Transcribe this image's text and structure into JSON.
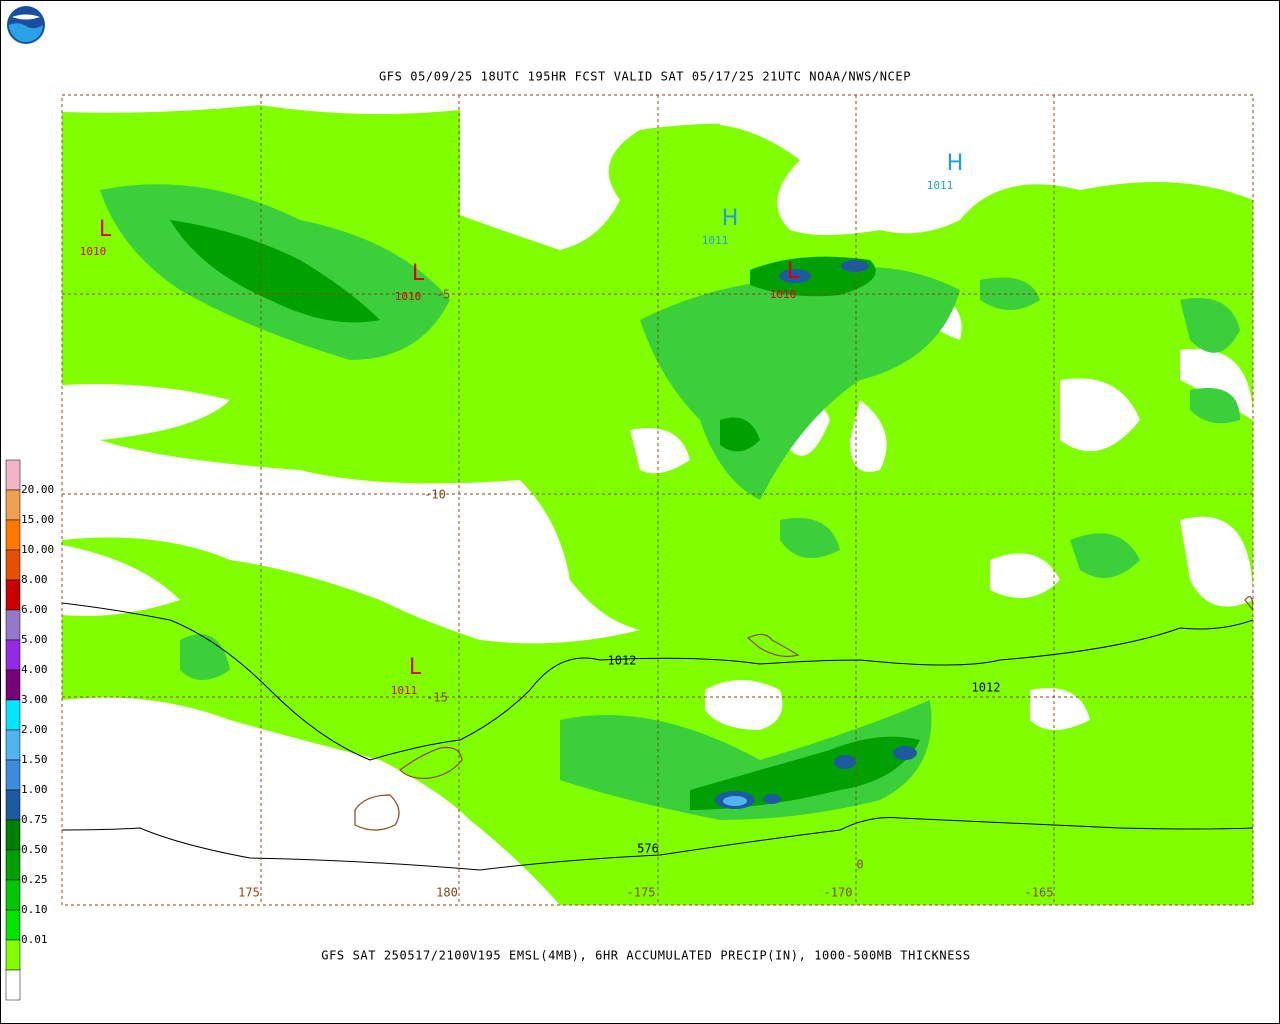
{
  "header": {
    "title": "GFS 05/09/25 18UTC 195HR FCST VALID SAT 05/17/25 21UTC NOAA/NWS/NCEP"
  },
  "footer": {
    "caption": "GFS SAT 250517/2100V195 EMSL(4MB), 6HR ACCUMULATED PRECIP(IN), 1000-500MB THICKNESS"
  },
  "legend": {
    "labels": [
      "20.00",
      "15.00",
      "10.00",
      "8.00",
      "6.00",
      "5.00",
      "4.00",
      "3.00",
      "2.00",
      "1.50",
      "1.00",
      "0.75",
      "0.50",
      "0.25",
      "0.10",
      "0.01"
    ]
  },
  "pressure_centers": [
    {
      "symbol": "L",
      "value": "1010"
    },
    {
      "symbol": "L",
      "value": "1010"
    },
    {
      "symbol": "L",
      "value": "1011"
    },
    {
      "symbol": "L",
      "value": "1010"
    },
    {
      "symbol": "H",
      "value": "1011"
    },
    {
      "symbol": "H",
      "value": "1011"
    }
  ],
  "lat_labels": [
    "-5",
    "-10",
    "-15"
  ],
  "lon_labels": [
    "175",
    "180",
    "-175",
    "-170",
    "-165"
  ],
  "contour_labels": [
    "1012",
    "1012",
    "576",
    "0"
  ]
}
